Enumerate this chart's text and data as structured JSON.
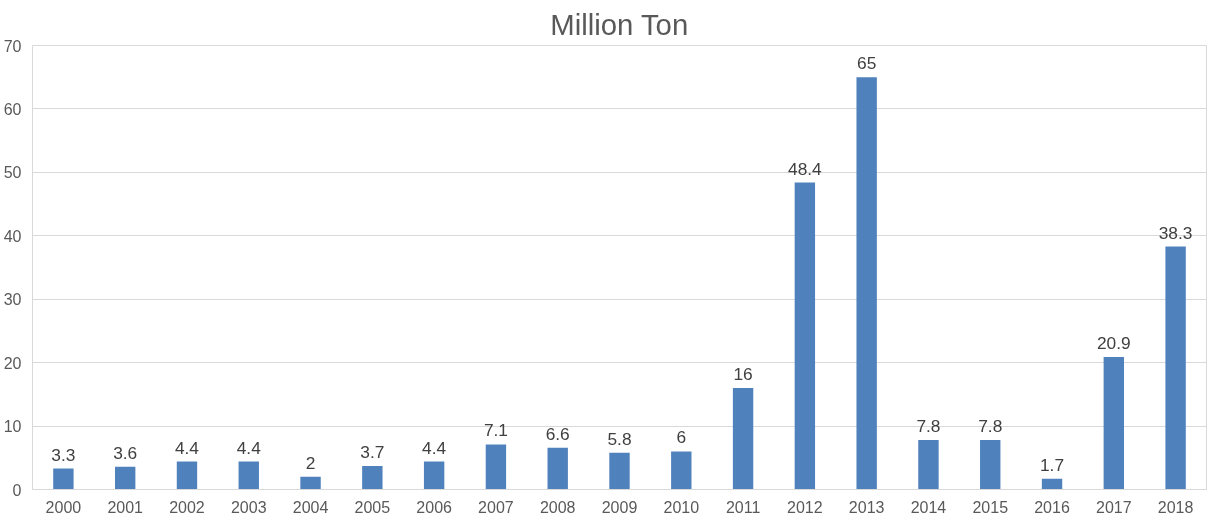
{
  "chart_data": {
    "type": "bar",
    "title": "Million Ton",
    "categories": [
      "2000",
      "2001",
      "2002",
      "2003",
      "2004",
      "2005",
      "2006",
      "2007",
      "2008",
      "2009",
      "2010",
      "2011",
      "2012",
      "2013",
      "2014",
      "2015",
      "2016",
      "2017",
      "2018"
    ],
    "values": [
      3.3,
      3.6,
      4.4,
      4.4,
      2,
      3.7,
      4.4,
      7.1,
      6.6,
      5.8,
      6,
      16,
      48.4,
      65,
      7.8,
      7.8,
      1.7,
      20.9,
      38.3
    ],
    "color": "#4f81bd",
    "ylim": [
      0,
      70
    ],
    "yticks": [
      0,
      10,
      20,
      30,
      40,
      50,
      60,
      70
    ],
    "grid": "y",
    "data_labels": true
  }
}
